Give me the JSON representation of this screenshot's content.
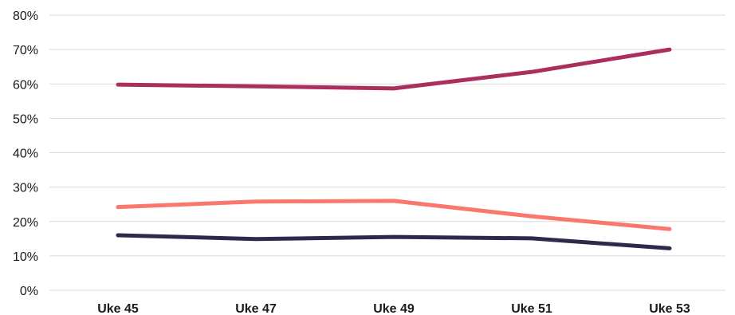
{
  "chart_data": {
    "type": "line",
    "title": "",
    "xlabel": "",
    "ylabel": "",
    "categories": [
      "Uke 45",
      "Uke 47",
      "Uke 49",
      "Uke 51",
      "Uke 53"
    ],
    "ylim": [
      0,
      80
    ],
    "yticks": [
      "0%",
      "10%",
      "20%",
      "30%",
      "40%",
      "50%",
      "60%",
      "70%",
      "80%"
    ],
    "ytick_values": [
      0,
      10,
      20,
      30,
      40,
      50,
      60,
      70,
      80
    ],
    "grid": true,
    "legend": "none",
    "series": [
      {
        "color": "#ab2f5e",
        "values": [
          59.8,
          59.3,
          58.7,
          63.5,
          70.0
        ]
      },
      {
        "color": "#f9776c",
        "values": [
          24.2,
          25.8,
          26.0,
          21.5,
          17.8
        ]
      },
      {
        "color": "#2c2a4a",
        "values": [
          16.0,
          14.9,
          15.5,
          15.1,
          12.2
        ]
      }
    ]
  }
}
